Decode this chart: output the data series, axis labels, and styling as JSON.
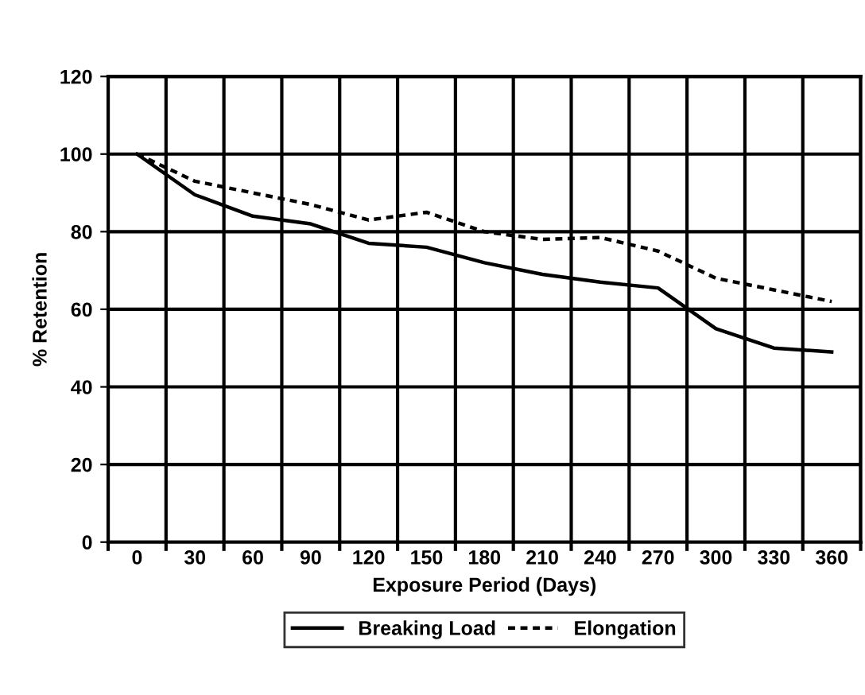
{
  "chart_data": {
    "type": "line",
    "xlabel": "Exposure Period (Days)",
    "ylabel": "% Retention",
    "categories": [
      "0",
      "30",
      "60",
      "90",
      "120",
      "150",
      "180",
      "210",
      "240",
      "270",
      "300",
      "330",
      "360"
    ],
    "series": [
      {
        "name": "Breaking Load",
        "color": "#000000",
        "line_style": "solid",
        "values": [
          100,
          89.5,
          84,
          82,
          77,
          76,
          72,
          69,
          67,
          65.5,
          55,
          50,
          49
        ]
      },
      {
        "name": "Elongation",
        "color": "#000000",
        "line_style": "dashed",
        "values": [
          100,
          93,
          90,
          87,
          83,
          85,
          80,
          78,
          78.5,
          75,
          68,
          65,
          62
        ]
      }
    ],
    "ylim": [
      0,
      120
    ],
    "yticks": [
      0,
      20,
      40,
      60,
      80,
      100,
      120
    ],
    "grid": true,
    "legend": "bottom",
    "marker": "none"
  }
}
